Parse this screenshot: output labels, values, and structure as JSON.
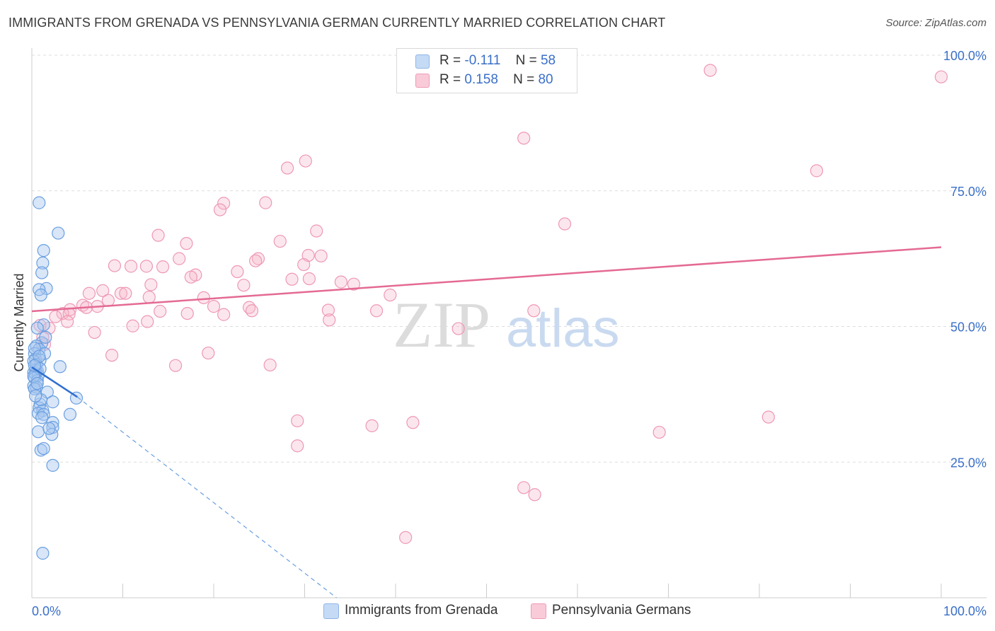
{
  "title": "IMMIGRANTS FROM GRENADA VS PENNSYLVANIA GERMAN CURRENTLY MARRIED CORRELATION CHART",
  "source": "Source: ZipAtlas.com",
  "watermark": {
    "zip": "ZIP",
    "atlas": "atlas"
  },
  "legend": {
    "rows": [
      {
        "r_label": "R =",
        "r_value": "-0.111",
        "n_label": "N =",
        "n_value": "58",
        "color": "#a9c8f0"
      },
      {
        "r_label": "R =",
        "r_value": "0.158",
        "n_label": "N =",
        "n_value": "80",
        "color": "#f7b8cb"
      }
    ]
  },
  "bottom_legend": [
    {
      "label": "Immigrants from Grenada",
      "color": "#a9c8f0"
    },
    {
      "label": "Pennsylvania Germans",
      "color": "#f7b8cb"
    }
  ],
  "chart_data": {
    "type": "scatter",
    "title": "IMMIGRANTS FROM GRENADA VS PENNSYLVANIA GERMAN CURRENTLY MARRIED CORRELATION CHART",
    "xlabel": "",
    "ylabel": "Currently Married",
    "xlim": [
      0,
      100
    ],
    "ylim": [
      0,
      100
    ],
    "x_tick_labels": [
      "0.0%",
      "100.0%"
    ],
    "y_tick_labels": [
      "25.0%",
      "50.0%",
      "75.0%",
      "100.0%"
    ],
    "y_ticks": [
      25,
      50,
      75,
      100
    ],
    "grid": true,
    "legend_position": "top-center",
    "series": [
      {
        "name": "Immigrants from Grenada",
        "color": "#6a9fe0",
        "fill": "#a9c8f0",
        "trend": {
          "x": [
            0,
            5
          ],
          "y": [
            42.5,
            37
          ],
          "dashed_extension_to": [
            33.5,
            0
          ]
        },
        "points": [
          [
            0.8,
            72.8
          ],
          [
            2.9,
            67.2
          ],
          [
            1.3,
            64
          ],
          [
            1.2,
            61.7
          ],
          [
            1.1,
            59.9
          ],
          [
            1.6,
            57
          ],
          [
            0.8,
            56.8
          ],
          [
            1.0,
            55.8
          ],
          [
            1.3,
            50.3
          ],
          [
            0.6,
            49.7
          ],
          [
            1.1,
            47
          ],
          [
            0.5,
            46.4
          ],
          [
            0.8,
            45.8
          ],
          [
            1.4,
            45
          ],
          [
            0.3,
            45
          ],
          [
            0.4,
            44
          ],
          [
            0.9,
            43.8
          ],
          [
            0.2,
            43.6
          ],
          [
            3.1,
            42.6
          ],
          [
            0.4,
            42
          ],
          [
            0.6,
            41.8
          ],
          [
            0.2,
            41.5
          ],
          [
            0.4,
            41.3
          ],
          [
            0.7,
            41
          ],
          [
            0.3,
            40.5
          ],
          [
            0.6,
            40
          ],
          [
            0.2,
            39
          ],
          [
            0.5,
            38.8
          ],
          [
            0.3,
            38.5
          ],
          [
            1.7,
            37.9
          ],
          [
            4.9,
            36.8
          ],
          [
            2.3,
            36.1
          ],
          [
            0.9,
            35.7
          ],
          [
            0.8,
            35
          ],
          [
            1.2,
            34.5
          ],
          [
            0.7,
            34
          ],
          [
            1.3,
            33.8
          ],
          [
            4.2,
            33.8
          ],
          [
            1.1,
            33.2
          ],
          [
            2.3,
            32.3
          ],
          [
            2.3,
            31.4
          ],
          [
            0.7,
            30.6
          ],
          [
            2.2,
            30.1
          ],
          [
            1.0,
            27.2
          ],
          [
            1.3,
            27.5
          ],
          [
            2.3,
            24.4
          ],
          [
            1.2,
            8.2
          ],
          [
            0.3,
            46
          ],
          [
            0.5,
            43
          ],
          [
            0.9,
            42.2
          ],
          [
            0.2,
            40.8
          ],
          [
            0.6,
            39.5
          ],
          [
            1.0,
            36.5
          ],
          [
            0.4,
            37.2
          ],
          [
            1.5,
            48
          ],
          [
            0.8,
            44.5
          ],
          [
            0.3,
            42.8
          ],
          [
            1.9,
            31.2
          ]
        ]
      },
      {
        "name": "Pennsylvania Germans",
        "color": "#e46a93",
        "fill": "#f7b8cb",
        "trend": {
          "x": [
            0,
            100
          ],
          "y": [
            52.8,
            64.6
          ]
        },
        "points": [
          [
            74.6,
            97.2
          ],
          [
            100,
            96
          ],
          [
            54.1,
            84.7
          ],
          [
            28.1,
            79.2
          ],
          [
            30.1,
            80.5
          ],
          [
            86.3,
            78.7
          ],
          [
            21.1,
            72.7
          ],
          [
            20.7,
            71.5
          ],
          [
            25.7,
            72.8
          ],
          [
            58.6,
            68.9
          ],
          [
            31.3,
            67.6
          ],
          [
            13.9,
            66.8
          ],
          [
            27.3,
            65.7
          ],
          [
            17.0,
            65.3
          ],
          [
            24.9,
            62.5
          ],
          [
            30.4,
            63.1
          ],
          [
            31.8,
            63
          ],
          [
            16.2,
            62.5
          ],
          [
            24.6,
            62.1
          ],
          [
            9.1,
            61.2
          ],
          [
            10.9,
            61.1
          ],
          [
            12.6,
            61.1
          ],
          [
            14.4,
            61
          ],
          [
            29.9,
            61.4
          ],
          [
            22.6,
            60.1
          ],
          [
            18.0,
            59.5
          ],
          [
            17.5,
            59.1
          ],
          [
            30.5,
            58.8
          ],
          [
            34.0,
            58.2
          ],
          [
            35.4,
            57.8
          ],
          [
            13.1,
            57.7
          ],
          [
            23.3,
            57.6
          ],
          [
            7.8,
            56.6
          ],
          [
            9.8,
            56.1
          ],
          [
            10.3,
            56.1
          ],
          [
            6.3,
            56.1
          ],
          [
            39.4,
            55.8
          ],
          [
            18.9,
            55.3
          ],
          [
            12.9,
            55.4
          ],
          [
            8.4,
            54.8
          ],
          [
            5.6,
            53.9
          ],
          [
            7.2,
            53.7
          ],
          [
            6.0,
            53.5
          ],
          [
            20.0,
            53.7
          ],
          [
            23.9,
            53.5
          ],
          [
            32.6,
            53
          ],
          [
            24.2,
            52.9
          ],
          [
            4.2,
            53.1
          ],
          [
            14.1,
            52.8
          ],
          [
            3.4,
            52.4
          ],
          [
            4.1,
            52.3
          ],
          [
            17.1,
            52.4
          ],
          [
            21.1,
            52.2
          ],
          [
            32.7,
            51.2
          ],
          [
            2.6,
            51.8
          ],
          [
            3.9,
            50.9
          ],
          [
            12.7,
            50.9
          ],
          [
            11.1,
            50.1
          ],
          [
            0.9,
            50.2
          ],
          [
            1.9,
            49.7
          ],
          [
            46.9,
            49.6
          ],
          [
            6.9,
            48.9
          ],
          [
            1.2,
            48
          ],
          [
            1.4,
            46.7
          ],
          [
            8.8,
            44.7
          ],
          [
            19.4,
            45.1
          ],
          [
            15.8,
            42.8
          ],
          [
            26.2,
            42.9
          ],
          [
            29.2,
            32.6
          ],
          [
            37.4,
            31.7
          ],
          [
            41.9,
            32.3
          ],
          [
            69.0,
            30.5
          ],
          [
            81.0,
            33.3
          ],
          [
            29.2,
            28
          ],
          [
            54.1,
            20.3
          ],
          [
            55.3,
            19
          ],
          [
            41.1,
            11.1
          ],
          [
            37.9,
            52.9
          ],
          [
            55.2,
            52.9
          ],
          [
            28.6,
            58.7
          ]
        ]
      }
    ]
  }
}
